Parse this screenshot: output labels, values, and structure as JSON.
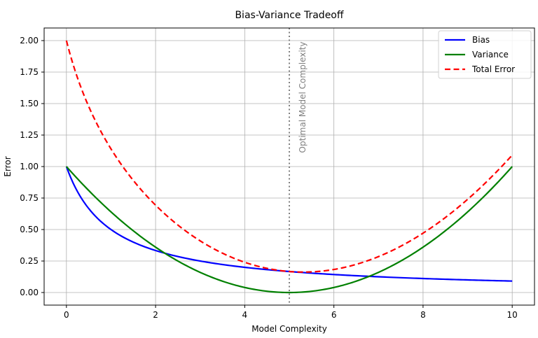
{
  "chart_data": {
    "type": "line",
    "title": "Bias-Variance Tradeoff",
    "xlabel": "Model Complexity",
    "ylabel": "Error",
    "xlim": [
      -0.5,
      10.5
    ],
    "ylim": [
      -0.1,
      2.1
    ],
    "xticks": [
      0,
      2,
      4,
      6,
      8,
      10
    ],
    "xtick_labels": [
      "0",
      "2",
      "4",
      "6",
      "8",
      "10"
    ],
    "yticks": [
      0.0,
      0.25,
      0.5,
      0.75,
      1.0,
      1.25,
      1.5,
      1.75,
      2.0
    ],
    "ytick_labels": [
      "0.00",
      "0.25",
      "0.50",
      "0.75",
      "1.00",
      "1.25",
      "1.50",
      "1.75",
      "2.00"
    ],
    "grid": true,
    "legend_position": "upper right",
    "x": [
      0,
      1,
      2,
      3,
      4,
      5,
      6,
      7,
      8,
      9,
      10
    ],
    "series": [
      {
        "name": "Bias",
        "color": "#0000ff",
        "style": "solid",
        "values": [
          1.0,
          0.5,
          0.333,
          0.25,
          0.2,
          0.167,
          0.143,
          0.125,
          0.111,
          0.1,
          0.091
        ]
      },
      {
        "name": "Variance",
        "color": "#008000",
        "style": "solid",
        "values": [
          1.0,
          0.64,
          0.36,
          0.16,
          0.04,
          0.0,
          0.04,
          0.16,
          0.36,
          0.64,
          1.0
        ]
      },
      {
        "name": "Total Error",
        "color": "#ff0000",
        "style": "dashed",
        "values": [
          2.0,
          1.14,
          0.693,
          0.41,
          0.24,
          0.167,
          0.183,
          0.285,
          0.471,
          0.74,
          1.091
        ]
      }
    ],
    "annotations": [
      {
        "type": "vline",
        "x": 5,
        "color": "#808080",
        "style": "dotted",
        "label": "Optimal Model Complexity"
      }
    ]
  }
}
